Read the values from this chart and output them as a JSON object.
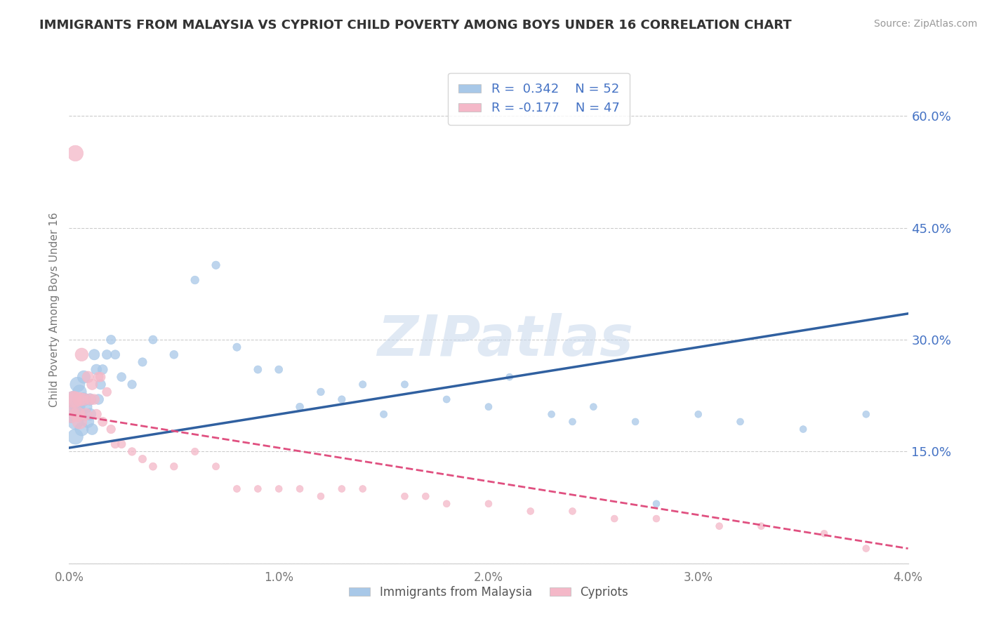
{
  "title": "IMMIGRANTS FROM MALAYSIA VS CYPRIOT CHILD POVERTY AMONG BOYS UNDER 16 CORRELATION CHART",
  "source": "Source: ZipAtlas.com",
  "xlabel_blue": "Immigrants from Malaysia",
  "xlabel_pink": "Cypriots",
  "ylabel": "Child Poverty Among Boys Under 16",
  "xlim": [
    0.0,
    0.04
  ],
  "ylim": [
    0.0,
    0.68
  ],
  "yticks": [
    0.15,
    0.3,
    0.45,
    0.6
  ],
  "xticks": [
    0.0,
    0.01,
    0.02,
    0.03,
    0.04
  ],
  "R_blue": 0.342,
  "N_blue": 52,
  "R_pink": -0.177,
  "N_pink": 47,
  "blue_color": "#a8c8e8",
  "pink_color": "#f4b8c8",
  "blue_line_color": "#3060a0",
  "pink_line_color": "#e05080",
  "watermark": "ZIPatlas",
  "blue_scatter_x": [
    0.0001,
    0.0002,
    0.0003,
    0.0003,
    0.0004,
    0.0004,
    0.0005,
    0.0005,
    0.0006,
    0.0007,
    0.0007,
    0.0008,
    0.0009,
    0.001,
    0.001,
    0.0011,
    0.0012,
    0.0013,
    0.0014,
    0.0015,
    0.0016,
    0.0018,
    0.002,
    0.0022,
    0.0025,
    0.003,
    0.0035,
    0.004,
    0.005,
    0.006,
    0.007,
    0.008,
    0.009,
    0.01,
    0.011,
    0.012,
    0.013,
    0.014,
    0.015,
    0.016,
    0.018,
    0.02,
    0.021,
    0.023,
    0.024,
    0.025,
    0.027,
    0.028,
    0.03,
    0.032,
    0.035,
    0.038
  ],
  "blue_scatter_y": [
    0.2,
    0.22,
    0.19,
    0.17,
    0.21,
    0.24,
    0.2,
    0.23,
    0.18,
    0.22,
    0.25,
    0.21,
    0.19,
    0.2,
    0.22,
    0.18,
    0.28,
    0.26,
    0.22,
    0.24,
    0.26,
    0.28,
    0.3,
    0.28,
    0.25,
    0.24,
    0.27,
    0.3,
    0.28,
    0.38,
    0.4,
    0.29,
    0.26,
    0.26,
    0.21,
    0.23,
    0.22,
    0.24,
    0.2,
    0.24,
    0.22,
    0.21,
    0.25,
    0.2,
    0.19,
    0.21,
    0.19,
    0.08,
    0.2,
    0.19,
    0.18,
    0.2
  ],
  "blue_scatter_s": [
    300,
    280,
    260,
    250,
    240,
    230,
    220,
    200,
    190,
    180,
    170,
    160,
    150,
    145,
    140,
    130,
    120,
    115,
    110,
    105,
    100,
    95,
    90,
    88,
    85,
    80,
    78,
    75,
    72,
    70,
    68,
    65,
    63,
    62,
    60,
    58,
    56,
    55,
    54,
    53,
    52,
    51,
    50,
    50,
    50,
    50,
    50,
    50,
    50,
    50,
    50,
    50
  ],
  "pink_scatter_x": [
    0.0001,
    0.0002,
    0.0003,
    0.0003,
    0.0004,
    0.0005,
    0.0005,
    0.0006,
    0.0007,
    0.0008,
    0.0009,
    0.001,
    0.0011,
    0.0012,
    0.0013,
    0.0014,
    0.0015,
    0.0016,
    0.0018,
    0.002,
    0.0022,
    0.0025,
    0.003,
    0.0035,
    0.004,
    0.005,
    0.006,
    0.007,
    0.008,
    0.009,
    0.01,
    0.011,
    0.012,
    0.013,
    0.014,
    0.016,
    0.017,
    0.018,
    0.02,
    0.022,
    0.024,
    0.026,
    0.028,
    0.031,
    0.033,
    0.036,
    0.038
  ],
  "pink_scatter_y": [
    0.2,
    0.22,
    0.55,
    0.22,
    0.2,
    0.19,
    0.22,
    0.28,
    0.22,
    0.2,
    0.25,
    0.22,
    0.24,
    0.22,
    0.2,
    0.25,
    0.25,
    0.19,
    0.23,
    0.18,
    0.16,
    0.16,
    0.15,
    0.14,
    0.13,
    0.13,
    0.15,
    0.13,
    0.1,
    0.1,
    0.1,
    0.1,
    0.09,
    0.1,
    0.1,
    0.09,
    0.09,
    0.08,
    0.08,
    0.07,
    0.07,
    0.06,
    0.06,
    0.05,
    0.05,
    0.04,
    0.02
  ],
  "pink_scatter_s": [
    300,
    280,
    260,
    250,
    240,
    220,
    200,
    180,
    160,
    150,
    140,
    130,
    120,
    110,
    105,
    100,
    95,
    90,
    85,
    80,
    75,
    72,
    68,
    65,
    62,
    58,
    55,
    53,
    52,
    51,
    50,
    50,
    50,
    50,
    50,
    50,
    50,
    50,
    50,
    50,
    50,
    50,
    50,
    50,
    50,
    50,
    50
  ]
}
